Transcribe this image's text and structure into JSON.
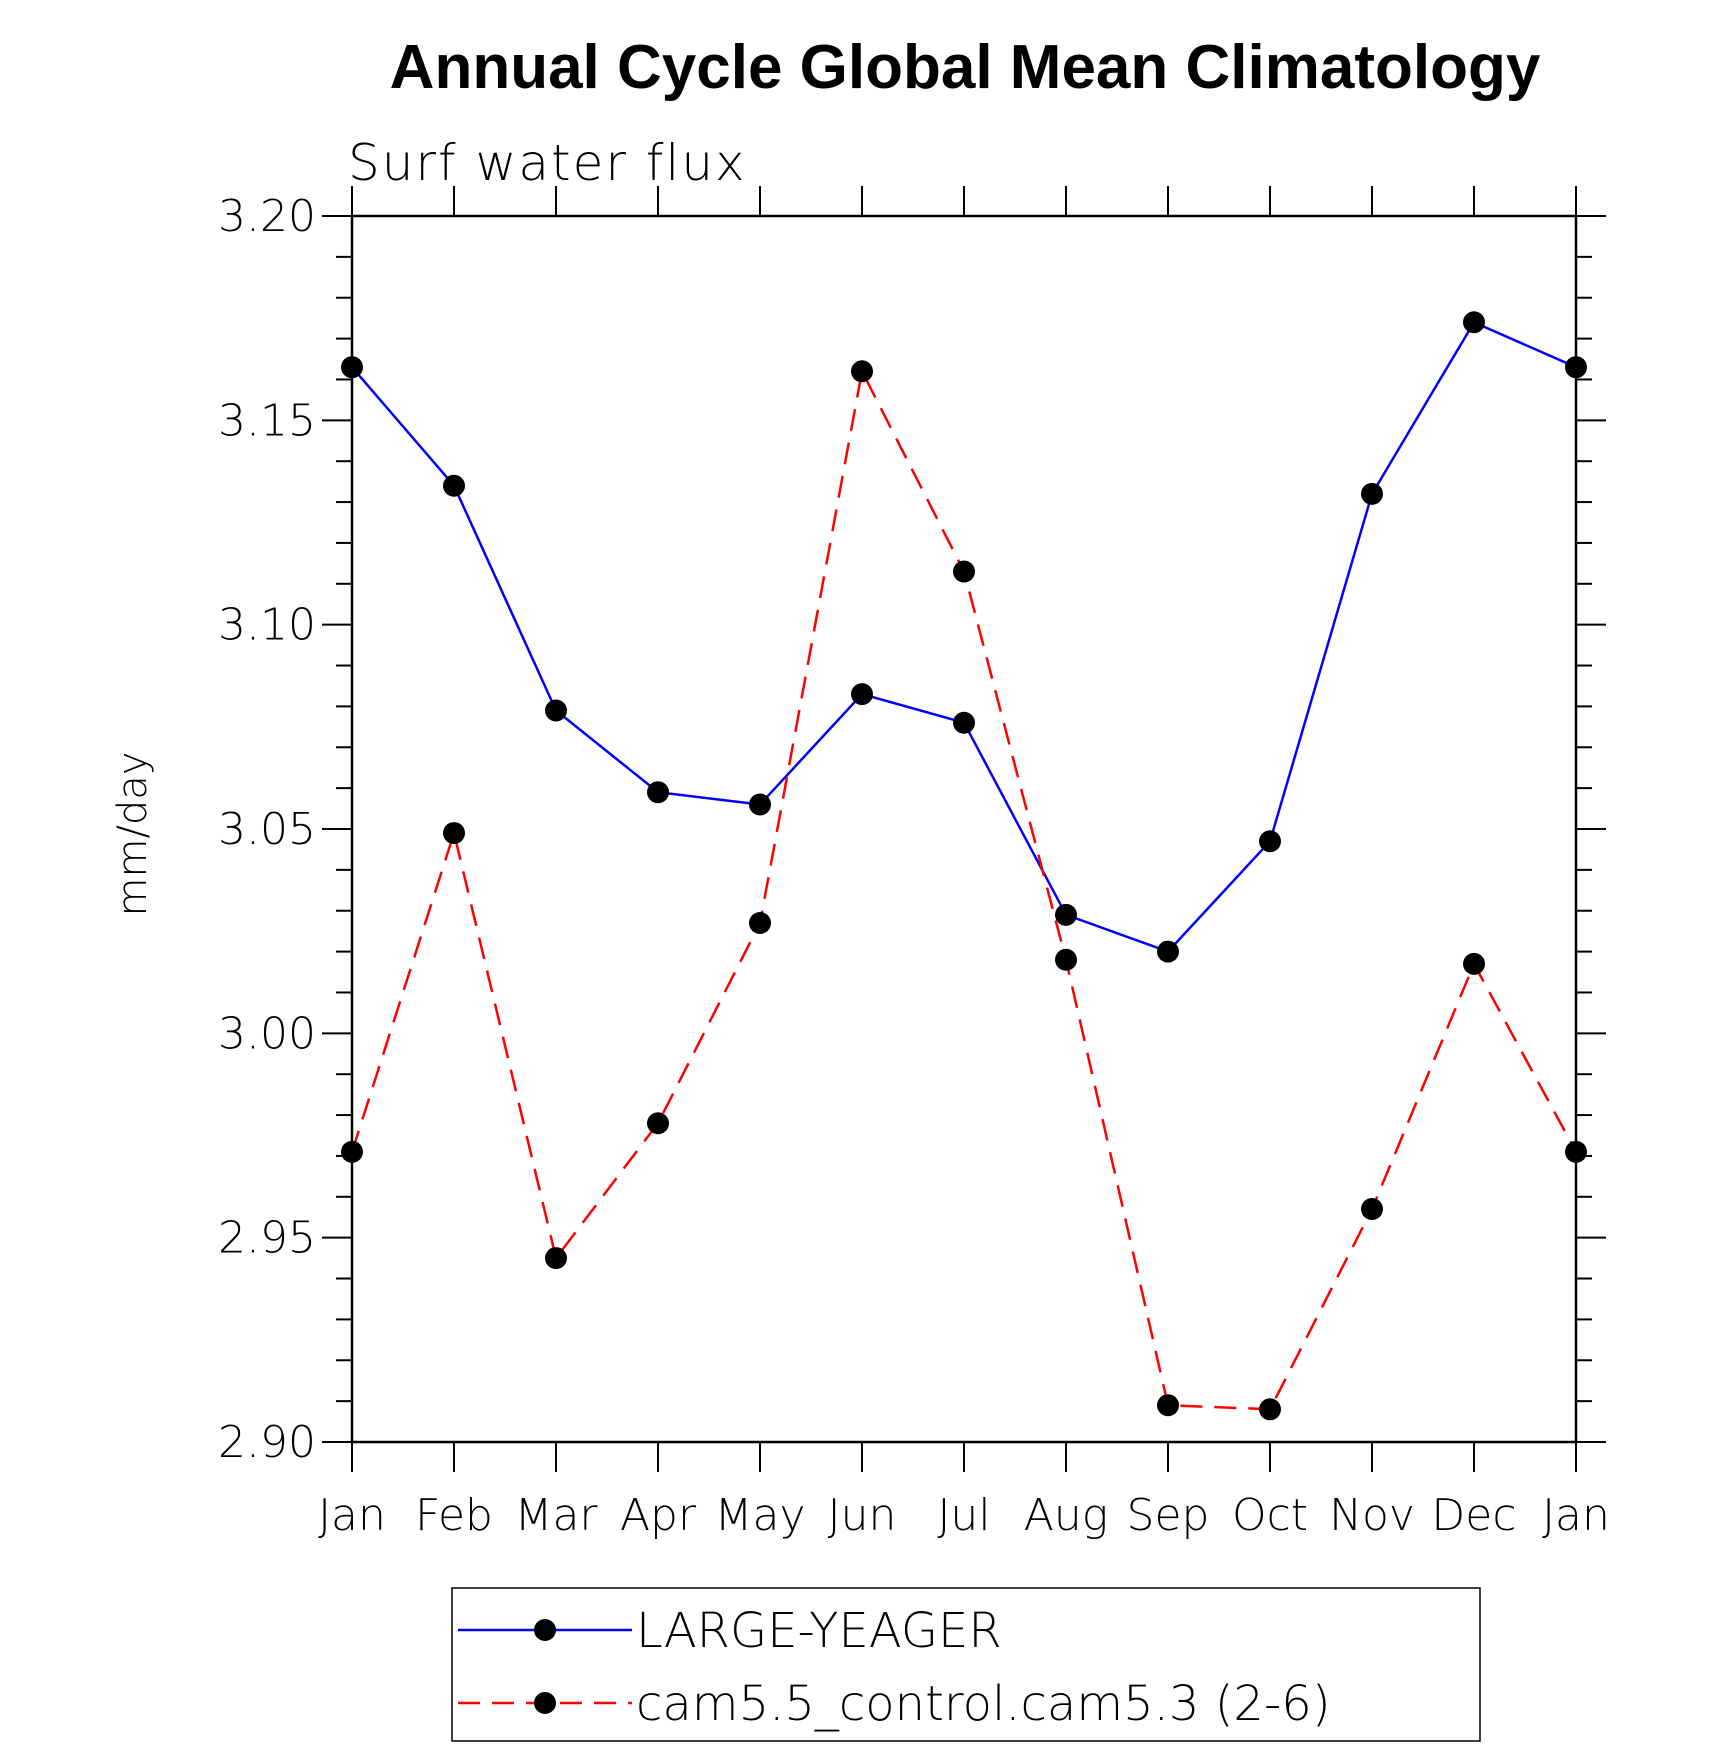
{
  "chart_data": {
    "type": "line",
    "title": "Annual Cycle Global Mean Climatology",
    "subtitle": "Surf water flux",
    "ylabel": "mm/day",
    "xlabel": "",
    "categories": [
      "Jan",
      "Feb",
      "Mar",
      "Apr",
      "May",
      "Jun",
      "Jul",
      "Aug",
      "Sep",
      "Oct",
      "Nov",
      "Dec",
      "Jan"
    ],
    "ylim": [
      2.9,
      3.2
    ],
    "yticks": [
      "3.20",
      "3.15",
      "3.10",
      "3.05",
      "3.00",
      "2.95",
      "2.90"
    ],
    "ytick_values": [
      3.2,
      3.15,
      3.1,
      3.05,
      3.0,
      2.95,
      2.9
    ],
    "grid": false,
    "legend_position": "bottom",
    "series": [
      {
        "name": "LARGE-YEAGER",
        "color": "#0000ff",
        "line_style": "solid",
        "marker": "filled-circle",
        "values": [
          3.163,
          3.134,
          3.079,
          3.059,
          3.056,
          3.083,
          3.076,
          3.029,
          3.02,
          3.047,
          3.132,
          3.174,
          3.163
        ]
      },
      {
        "name": "cam5.5_control.cam5.3 (2-6)",
        "color": "#ff0000",
        "line_style": "dashed",
        "marker": "filled-circle",
        "values": [
          2.971,
          3.049,
          2.945,
          2.978,
          3.027,
          3.162,
          3.113,
          3.018,
          2.909,
          2.908,
          2.957,
          3.017,
          2.971
        ]
      }
    ]
  }
}
